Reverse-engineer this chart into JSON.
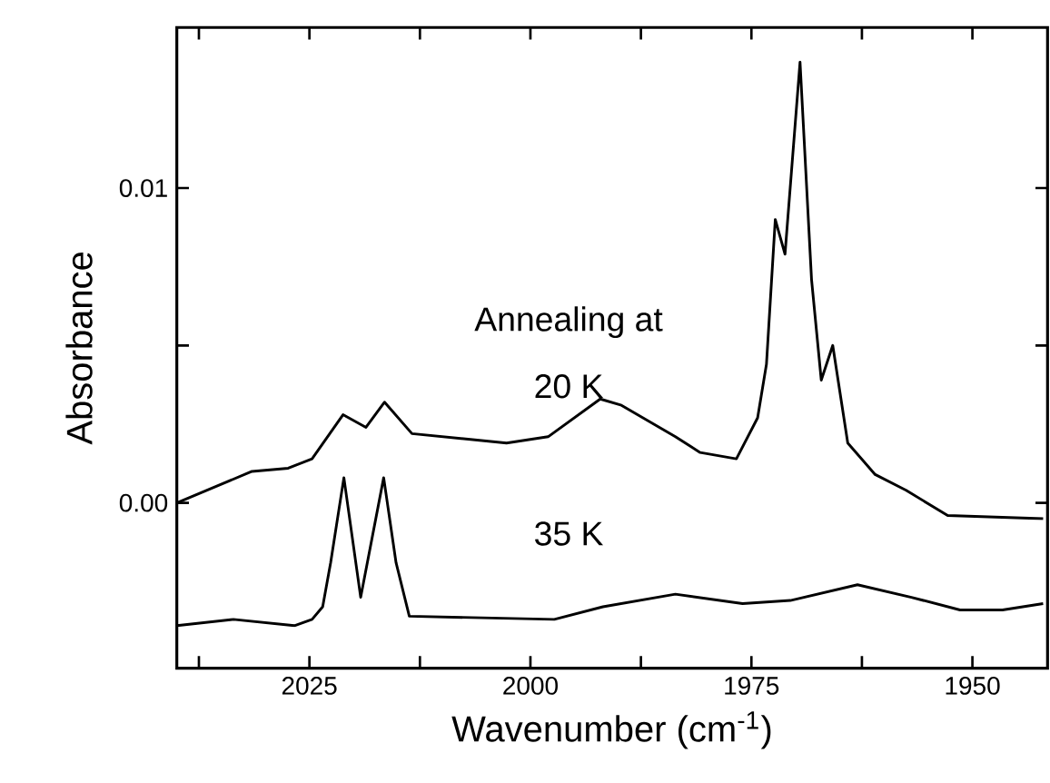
{
  "chart_data": {
    "type": "line",
    "xlabel": "Wavenumber (cm$^{-1}$)",
    "ylabel": "Absorbance",
    "marker": "none",
    "line_style": "solid",
    "xlim": [
      2040,
      1941.5
    ],
    "ylim": [
      -0.00525,
      0.0151
    ],
    "xticks": [
      {
        "value": 2037.5,
        "label": null
      },
      2025,
      {
        "value": 2012.5,
        "label": null
      },
      2000,
      {
        "value": 1987.5,
        "label": null
      },
      1975,
      {
        "value": 1962.5,
        "label": null
      },
      1950
    ],
    "yticks": [
      {
        "value": 0,
        "label": "0.00"
      },
      {
        "value": 0.005,
        "label": null
      },
      0.01
    ],
    "series": [
      {
        "color": "#000000",
        "x": [
          2040,
          2031.5,
          2027.4,
          2024.7,
          2021.2,
          2018.6,
          2016.5,
          2013.4,
          2002.7,
          1998,
          1992.1,
          1989.7,
          1983.6,
          1980.8,
          1976.7,
          1974.3,
          1973.3,
          1972.3,
          1971.2,
          1969.5,
          1968.2,
          1967.1,
          1965.8,
          1964.1,
          1961,
          1957.5,
          1952.8,
          1942
        ],
        "values": [
          0.0,
          0.001,
          0.0011,
          0.0014,
          0.0028,
          0.0024,
          0.0032,
          0.0022,
          0.0019,
          0.0021,
          0.0033,
          0.0031,
          0.0021,
          0.0016,
          0.0014,
          0.0027,
          0.0044,
          0.009,
          0.0079,
          0.014,
          0.0071,
          0.0039,
          0.005,
          0.0019,
          0.0009,
          0.0004,
          -0.0004,
          -0.0005
        ]
      },
      {
        "color": "#000000",
        "x": [
          2040,
          2033.6,
          2026.7,
          2024.7,
          2023.5,
          2022.6,
          2021.1,
          2019.2,
          2016.6,
          2015.2,
          2013.7,
          1997.3,
          1991.8,
          1983.6,
          1976,
          1970.6,
          1963,
          1956.9,
          1951.4,
          1946.6,
          1942
        ],
        "values": [
          -0.0039,
          -0.0037,
          -0.0039,
          -0.0037,
          -0.0033,
          -0.0019,
          0.0008,
          -0.003,
          0.0008,
          -0.0019,
          -0.0036,
          -0.0037,
          -0.0033,
          -0.0029,
          -0.0032,
          -0.0031,
          -0.0026,
          -0.003,
          -0.0034,
          -0.0034,
          -0.0032
        ]
      }
    ],
    "annotations": [
      "Annealing at",
      "20 K",
      "35 K"
    ]
  }
}
